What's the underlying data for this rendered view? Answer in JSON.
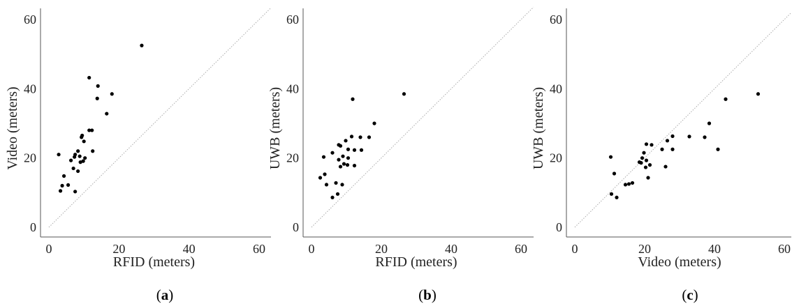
{
  "chart_data": [
    {
      "type": "scatter",
      "panel_label": {
        "open": "(",
        "letter": "a",
        "close": ")"
      },
      "xlabel": "RFID (meters)",
      "ylabel": "Video (meters)",
      "xlim": [
        0,
        60
      ],
      "ylim": [
        0,
        60
      ],
      "xticks": [
        0,
        20,
        40,
        60
      ],
      "yticks": [
        0,
        20,
        40,
        60
      ],
      "xtick_labels": [
        "0",
        "20",
        "40",
        "60"
      ],
      "ytick_labels": [
        "0",
        "20",
        "40",
        "60"
      ],
      "reference_line": "y = x",
      "points": [
        [
          26.5,
          52.5
        ],
        [
          11.5,
          43.2
        ],
        [
          14,
          40.8
        ],
        [
          18,
          38.5
        ],
        [
          13.8,
          37.2
        ],
        [
          16.5,
          32.8
        ],
        [
          11.5,
          28
        ],
        [
          12.3,
          28
        ],
        [
          9.5,
          26.5
        ],
        [
          9.3,
          26
        ],
        [
          8.3,
          22
        ],
        [
          10,
          24.8
        ],
        [
          12.5,
          22
        ],
        [
          7.5,
          21
        ],
        [
          2.8,
          21
        ],
        [
          8.8,
          20.5
        ],
        [
          7.3,
          20.3
        ],
        [
          10.3,
          20
        ],
        [
          6.3,
          19.3
        ],
        [
          9,
          18.8
        ],
        [
          9.8,
          19.1
        ],
        [
          8.3,
          16.2
        ],
        [
          7,
          17
        ],
        [
          4.3,
          14.8
        ],
        [
          3.8,
          12
        ],
        [
          5.5,
          12.2
        ],
        [
          3.3,
          10.5
        ],
        [
          7.5,
          10.3
        ]
      ]
    },
    {
      "type": "scatter",
      "panel_label": {
        "open": "(",
        "letter": "b",
        "close": ")"
      },
      "xlabel": "RFID (meters)",
      "ylabel": "UWB (meters)",
      "xlim": [
        0,
        60
      ],
      "ylim": [
        0,
        60
      ],
      "xticks": [
        0,
        20,
        40,
        60
      ],
      "yticks": [
        0,
        20,
        40,
        60
      ],
      "xtick_labels": [
        "0",
        "20",
        "40",
        "60"
      ],
      "ytick_labels": [
        "0",
        "20",
        "40",
        "60"
      ],
      "reference_line": "y = x",
      "points": [
        [
          26.5,
          38.5
        ],
        [
          11.8,
          37
        ],
        [
          18,
          30
        ],
        [
          16.5,
          26
        ],
        [
          11.5,
          26.2
        ],
        [
          14,
          26
        ],
        [
          9.8,
          25
        ],
        [
          7.8,
          23.8
        ],
        [
          8.3,
          23.5
        ],
        [
          10.5,
          22.5
        ],
        [
          12.3,
          22.3
        ],
        [
          14.3,
          22.3
        ],
        [
          6,
          21.5
        ],
        [
          3.5,
          20.3
        ],
        [
          9,
          20.5
        ],
        [
          7.8,
          19.5
        ],
        [
          10.5,
          20
        ],
        [
          9.3,
          18.3
        ],
        [
          10.3,
          18
        ],
        [
          12.3,
          17.8
        ],
        [
          8.3,
          17.5
        ],
        [
          2.5,
          14.3
        ],
        [
          3.8,
          15.3
        ],
        [
          7,
          12.8
        ],
        [
          8.8,
          12.3
        ],
        [
          4.3,
          12.3
        ],
        [
          7.5,
          9.6
        ],
        [
          6,
          8.6
        ]
      ]
    },
    {
      "type": "scatter",
      "panel_label": {
        "open": "(",
        "letter": "c",
        "close": ")"
      },
      "xlabel": "Video (meters)",
      "ylabel": "UWB (meters)",
      "xlim": [
        0,
        60
      ],
      "ylim": [
        0,
        60
      ],
      "xticks": [
        0,
        20,
        40,
        60
      ],
      "yticks": [
        0,
        20,
        40,
        60
      ],
      "xtick_labels": [
        "0",
        "20",
        "40",
        "60"
      ],
      "ytick_labels": [
        "0",
        "20",
        "40",
        "60"
      ],
      "reference_line": "y = x",
      "points": [
        [
          52.5,
          38.5
        ],
        [
          43.2,
          37
        ],
        [
          38.5,
          30
        ],
        [
          37.2,
          26
        ],
        [
          32.8,
          26.2
        ],
        [
          28,
          26.3
        ],
        [
          26.5,
          25
        ],
        [
          22,
          23.8
        ],
        [
          20.5,
          24
        ],
        [
          19.8,
          21.5
        ],
        [
          25,
          22.5
        ],
        [
          28,
          22.5
        ],
        [
          41,
          22.5
        ],
        [
          10.3,
          20.3
        ],
        [
          19.3,
          20
        ],
        [
          19,
          18.6
        ],
        [
          20.5,
          19.3
        ],
        [
          21.5,
          18
        ],
        [
          20.3,
          17.3
        ],
        [
          18.5,
          18.8
        ],
        [
          26,
          17.5
        ],
        [
          21,
          14.3
        ],
        [
          11.3,
          15.5
        ],
        [
          16.5,
          12.8
        ],
        [
          15.5,
          12.5
        ],
        [
          14.5,
          12.3
        ],
        [
          10.5,
          9.6
        ],
        [
          12,
          8.6
        ]
      ]
    }
  ]
}
